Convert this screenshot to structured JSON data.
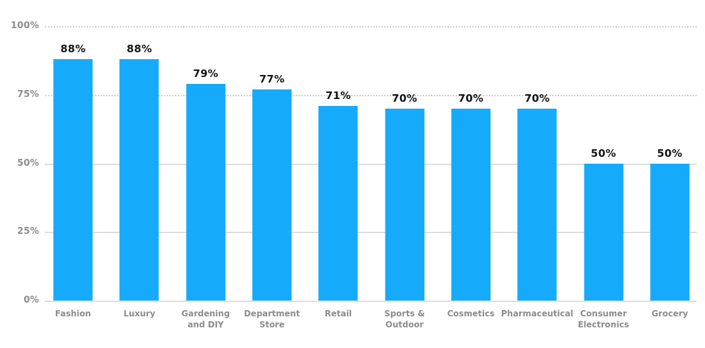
{
  "colors": {
    "background": "#FFFFFF",
    "bar": "#15AAFA",
    "value_label": "#151515",
    "axis_label": "#8C8C8C",
    "grid_dotted": "#CFCFCF",
    "grid_solid": "#DEDEDE"
  },
  "y_axis": {
    "tick_labels": [
      "100%",
      "75%",
      "50%",
      "25%",
      "0%"
    ],
    "tick_values": [
      100,
      75,
      50,
      25,
      0
    ],
    "grid_styles": [
      "dotted",
      "dotted",
      "solid",
      "solid",
      "solid"
    ]
  },
  "chart_data": {
    "type": "bar",
    "title": "",
    "xlabel": "",
    "ylabel": "",
    "ylim": [
      0,
      100
    ],
    "yticks": [
      0,
      25,
      50,
      75,
      100
    ],
    "grid": true,
    "legend": false,
    "bar_color": "#15AAFA",
    "categories": [
      "Fashion",
      "Luxury",
      "Gardening and DIY",
      "Department Store",
      "Retail",
      "Sports & Outdoor",
      "Cosmetics",
      "Pharmaceutical",
      "Consumer Electronics",
      "Grocery"
    ],
    "values": [
      88,
      88,
      79,
      77,
      71,
      70,
      70,
      70,
      50,
      50
    ],
    "value_labels": [
      "88%",
      "88%",
      "79%",
      "77%",
      "71%",
      "70%",
      "70%",
      "70%",
      "50%",
      "50%"
    ],
    "category_label_lines": [
      [
        "Fashion"
      ],
      [
        "Luxury"
      ],
      [
        "Gardening",
        "and DIY"
      ],
      [
        "Department",
        "Store"
      ],
      [
        "Retail"
      ],
      [
        "Sports &",
        "Outdoor"
      ],
      [
        "Cosmetics"
      ],
      [
        "Pharmaceutical"
      ],
      [
        "Consumer",
        "Electronics"
      ],
      [
        "Grocery"
      ]
    ]
  }
}
